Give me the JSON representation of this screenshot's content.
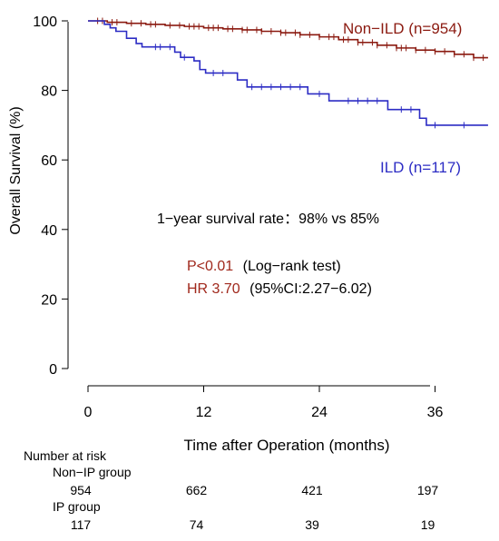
{
  "chart_data": {
    "type": "line",
    "xlabel": "Time after Operation (months)",
    "ylabel": "Overall Survival (%)",
    "xlim": [
      -2,
      42
    ],
    "ylim": [
      -4,
      102
    ],
    "x_ticks": [
      0,
      12,
      24,
      36
    ],
    "y_ticks": [
      0,
      20,
      40,
      60,
      80,
      100
    ],
    "grid": false,
    "series": [
      {
        "name": "Non−ILD (n=954)",
        "color": "#8b1a10",
        "step_points": [
          [
            0,
            100
          ],
          [
            2,
            99.6
          ],
          [
            4,
            99.3
          ],
          [
            6,
            99.0
          ],
          [
            8,
            98.7
          ],
          [
            10,
            98.4
          ],
          [
            12,
            98.0
          ],
          [
            14,
            97.7
          ],
          [
            16,
            97.4
          ],
          [
            18,
            97.0
          ],
          [
            20,
            96.6
          ],
          [
            22,
            96.0
          ],
          [
            24,
            95.4
          ],
          [
            26,
            94.6
          ],
          [
            28,
            93.8
          ],
          [
            30,
            93.0
          ],
          [
            32,
            92.2
          ],
          [
            34,
            91.6
          ],
          [
            36,
            91.2
          ],
          [
            38,
            90.4
          ],
          [
            40,
            89.4
          ]
        ],
        "censor_x": [
          1,
          1.5,
          2.5,
          3,
          4.5,
          5.5,
          6.5,
          7,
          8.5,
          9.5,
          10.5,
          11,
          11.5,
          12.5,
          13,
          13.5,
          14.5,
          15,
          16,
          16.5,
          17.5,
          18,
          19,
          20,
          20.5,
          21.5,
          22,
          23,
          24,
          25,
          25.5,
          26.5,
          27,
          28,
          28.5,
          29.5,
          30,
          31,
          32,
          32.5,
          33,
          34,
          35,
          36,
          37,
          38,
          39,
          40,
          41
        ]
      },
      {
        "name": "ILD (n=117)",
        "color": "#2c2cc4",
        "step_points": [
          [
            0,
            100
          ],
          [
            1.7,
            99
          ],
          [
            2.3,
            98
          ],
          [
            2.9,
            97
          ],
          [
            4,
            95
          ],
          [
            5,
            93.5
          ],
          [
            5.6,
            92.5
          ],
          [
            9,
            91
          ],
          [
            9.6,
            89.5
          ],
          [
            11,
            88.5
          ],
          [
            11.6,
            86
          ],
          [
            12.2,
            85
          ],
          [
            15.5,
            83
          ],
          [
            16.5,
            81
          ],
          [
            22.8,
            79
          ],
          [
            25,
            77
          ],
          [
            31.1,
            74.5
          ],
          [
            34.4,
            72
          ],
          [
            35.1,
            70
          ]
        ],
        "censor_x": [
          7,
          7.5,
          8.5,
          10,
          13,
          14,
          17,
          18,
          19,
          20,
          21,
          22,
          24,
          27,
          28,
          29,
          30,
          32.5,
          33.5,
          36,
          39
        ]
      }
    ],
    "annotations": {
      "survival_rate": "1−year survival rate：98% vs 85%",
      "p_value": "P<0.01",
      "p_test": "(Log−rank test)",
      "hr": "HR 3.70",
      "hr_ci": "(95%CI:2.27−6.02)"
    },
    "risk_table": {
      "title": "Number at risk",
      "groups": [
        {
          "label": "Non−IP group",
          "values": [
            954,
            662,
            421,
            197
          ]
        },
        {
          "label": "IP group",
          "values": [
            117,
            74,
            39,
            19
          ]
        }
      ]
    }
  }
}
